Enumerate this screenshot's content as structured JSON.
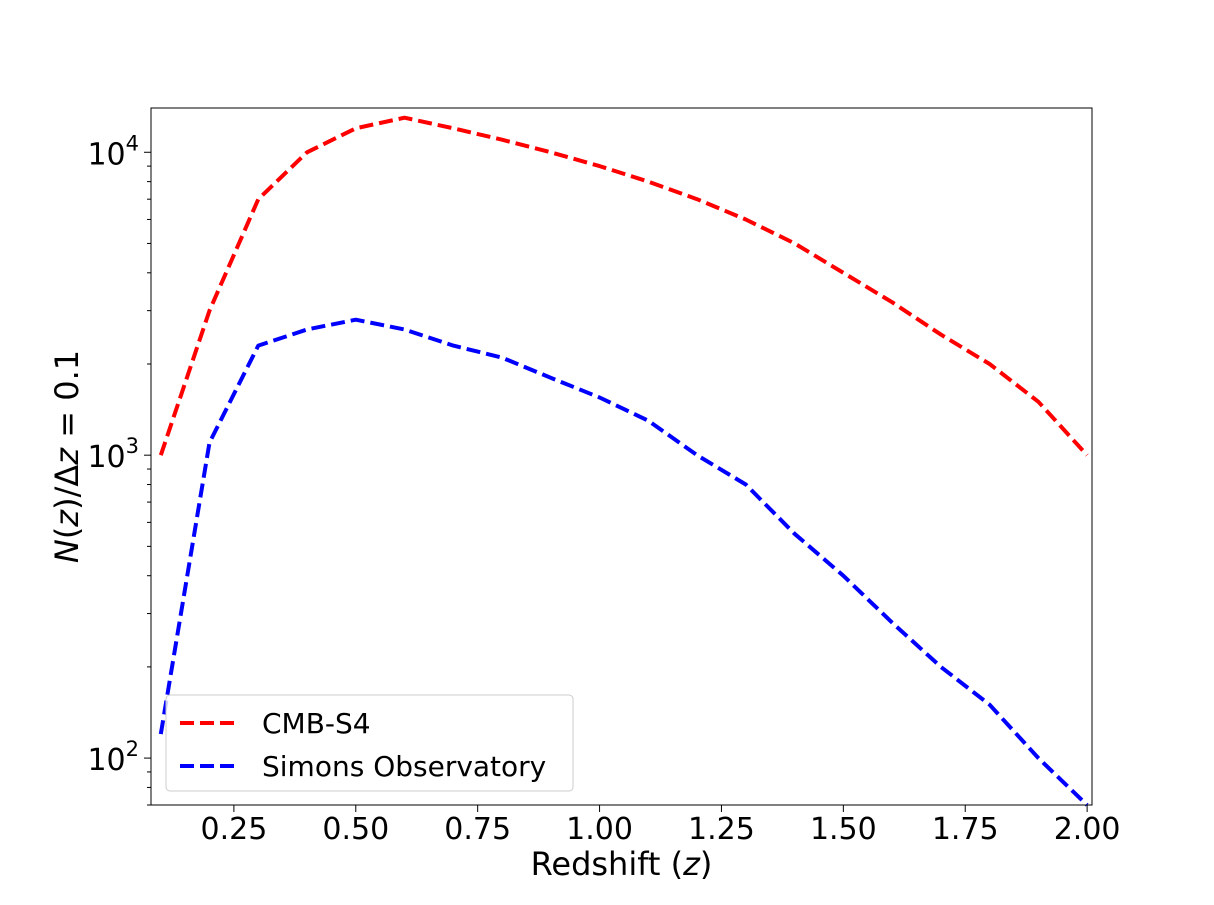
{
  "chart_data": {
    "type": "line",
    "xlabel": "Redshift (z)",
    "ylabel": "N(z)/Δz = 0.1",
    "xlim": [
      0.08,
      2.01
    ],
    "ylim": [
      70,
      14000
    ],
    "y_scale": "log",
    "grid": false,
    "legend_position": "lower-left",
    "x_ticks": [
      0.25,
      0.5,
      0.75,
      1.0,
      1.25,
      1.5,
      1.75,
      2.0
    ],
    "x_tick_labels": [
      "0.25",
      "0.50",
      "0.75",
      "1.00",
      "1.25",
      "1.50",
      "1.75",
      "2.00"
    ],
    "y_ticks": [
      100,
      1000,
      10000
    ],
    "y_tick_labels": [
      {
        "base": "10",
        "exp": "2"
      },
      {
        "base": "10",
        "exp": "3"
      },
      {
        "base": "10",
        "exp": "4"
      }
    ],
    "series": [
      {
        "name": "CMB-S4",
        "color": "#ff0000",
        "line_style": "dashed",
        "x": [
          0.1,
          0.2,
          0.3,
          0.4,
          0.5,
          0.6,
          0.7,
          0.8,
          0.9,
          1.0,
          1.1,
          1.2,
          1.3,
          1.4,
          1.5,
          1.6,
          1.7,
          1.8,
          1.9,
          2.0
        ],
        "y": [
          1000,
          3000,
          7000,
          10000,
          12000,
          13000,
          12000,
          11000,
          10000,
          9000,
          8000,
          7000,
          6000,
          5000,
          4000,
          3200,
          2500,
          2000,
          1500,
          1000
        ]
      },
      {
        "name": "Simons Observatory",
        "color": "#0000ff",
        "line_style": "dashed",
        "x": [
          0.1,
          0.2,
          0.3,
          0.4,
          0.5,
          0.6,
          0.7,
          0.8,
          0.9,
          1.0,
          1.1,
          1.2,
          1.3,
          1.4,
          1.5,
          1.6,
          1.7,
          1.8,
          1.9,
          2.0
        ],
        "y": [
          120,
          1100,
          2300,
          2600,
          2800,
          2600,
          2300,
          2100,
          1800,
          1550,
          1300,
          1000,
          800,
          550,
          400,
          280,
          200,
          150,
          100,
          70
        ]
      }
    ]
  }
}
